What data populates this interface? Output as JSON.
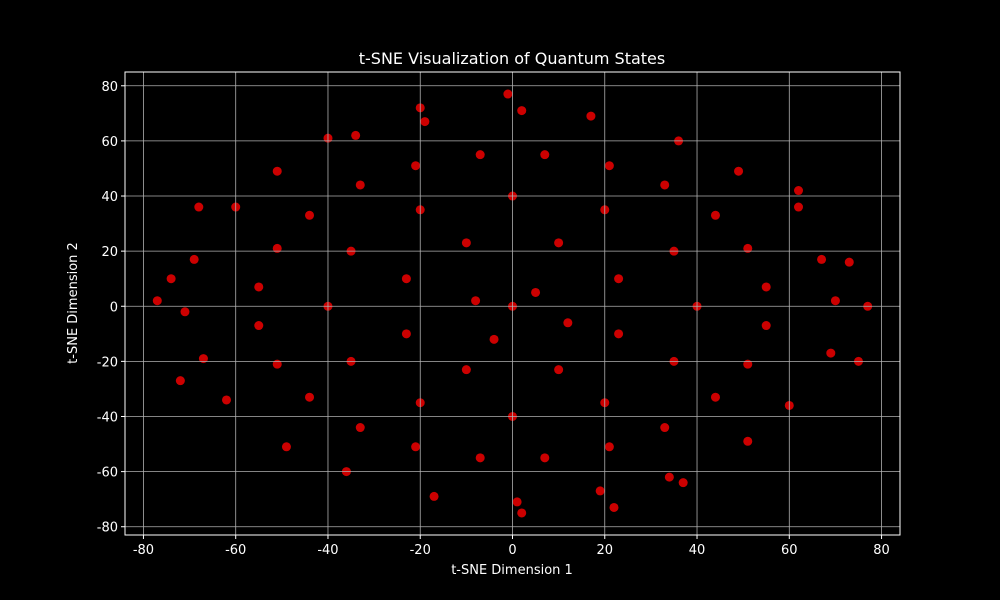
{
  "chart_data": {
    "type": "scatter",
    "title": "t-SNE Visualization of Quantum States",
    "x_label": "t-SNE Dimension 1",
    "y_label": "t-SNE Dimension 2",
    "xlim": [
      -84,
      84
    ],
    "ylim": [
      -83,
      85
    ],
    "xticks": [
      -80,
      -60,
      -40,
      -20,
      0,
      20,
      40,
      60,
      80
    ],
    "yticks": [
      -80,
      -60,
      -40,
      -20,
      0,
      20,
      40,
      60,
      80
    ],
    "grid": true,
    "series": [
      {
        "color": "#ff0000",
        "x": [
          70,
          67,
          62,
          49,
          36,
          17,
          2,
          -19,
          -34,
          -51,
          -60,
          -69,
          -71,
          -67,
          -62,
          -49,
          -36,
          -17,
          1,
          19,
          34,
          51,
          60,
          69,
          55,
          51,
          44,
          33,
          21,
          7,
          -7,
          -21,
          -33,
          -44,
          -51,
          -55,
          -55,
          -51,
          -44,
          -33,
          -21,
          -7,
          7,
          21,
          33,
          44,
          51,
          55,
          40,
          35,
          20,
          0,
          -20,
          -35,
          -40,
          -35,
          -20,
          0,
          20,
          35,
          23,
          10,
          -10,
          -23,
          -23,
          -10,
          10,
          23,
          0,
          5,
          -8,
          12,
          -4,
          -77,
          77,
          -1,
          2,
          -74,
          75,
          73,
          -72,
          62,
          -68,
          37,
          -40,
          -20,
          22
        ],
        "y": [
          2,
          17,
          36,
          49,
          60,
          69,
          71,
          67,
          62,
          49,
          36,
          17,
          -2,
          -19,
          -34,
          -51,
          -60,
          -69,
          -71,
          -67,
          -62,
          -49,
          -36,
          -17,
          7,
          21,
          33,
          44,
          51,
          55,
          55,
          51,
          44,
          33,
          21,
          7,
          -7,
          -21,
          -33,
          -44,
          -51,
          -55,
          -55,
          -51,
          -44,
          -33,
          -21,
          -7,
          0,
          20,
          35,
          40,
          35,
          20,
          0,
          -20,
          -35,
          -40,
          -35,
          -20,
          10,
          23,
          23,
          10,
          -10,
          -23,
          -23,
          -10,
          0,
          5,
          2,
          -6,
          -12,
          2,
          0,
          77,
          -75,
          10,
          -20,
          16,
          -27,
          42,
          36,
          -64,
          61,
          72,
          -73
        ]
      }
    ]
  }
}
